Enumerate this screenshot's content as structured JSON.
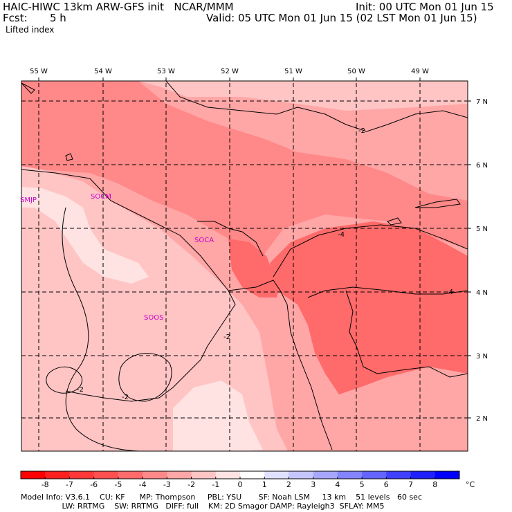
{
  "header": {
    "model_line": "HAIC-HIWC 13km ARW-GFS init   NCAR/MMM",
    "fcst_label": "Fcst:",
    "fcst_value": "5 h",
    "init_line": "Init: 00 UTC Mon 01 Jun 15",
    "valid_line": "Valid: 05 UTC Mon 01 Jun 15 (02 LST Mon 01 Jun 15)",
    "field_name": "Lifted index"
  },
  "map": {
    "lon_labels": [
      "55 W",
      "54 W",
      "53 W",
      "52 W",
      "51 W",
      "50 W",
      "49 W"
    ],
    "lat_labels": [
      "7 N",
      "6 N",
      "5 N",
      "4 N",
      "3 N",
      "2 N"
    ],
    "stations": [
      "SMJP",
      "SOCM",
      "SOCA",
      "SOOS"
    ],
    "contour_labels": [
      "-2",
      "-4",
      "-4",
      "-2",
      "-2",
      "-2"
    ]
  },
  "colorbar": {
    "ticks": [
      "-8",
      "-7",
      "-6",
      "-5",
      "-4",
      "-3",
      "-2",
      "-1",
      "0",
      "1",
      "2",
      "3",
      "4",
      "5",
      "6",
      "7",
      "8"
    ],
    "unit": "°C",
    "colors": [
      "#ff0000",
      "#ff2020",
      "#ff3838",
      "#ff5050",
      "#ff6a6a",
      "#ff8888",
      "#ffa6a6",
      "#ffc4c4",
      "#ffe2e2",
      "#ffffff",
      "#e0e0ff",
      "#c6c6ff",
      "#a6a6ff",
      "#8484ff",
      "#6464ff",
      "#4040ff",
      "#2020ff",
      "#0000ff"
    ]
  },
  "footer": {
    "line1": "Model Info: V3.6.1    CU: KF      MP: Thompson     PBL: YSU       SF: Noah LSM     13 km    51 levels   60 sec",
    "line2": "                 LW: RRTMG    SW: RRTMG   DIFF: full    KM: 2D Smagor DAMP: Rayleigh3  SFLAY: MM5"
  }
}
